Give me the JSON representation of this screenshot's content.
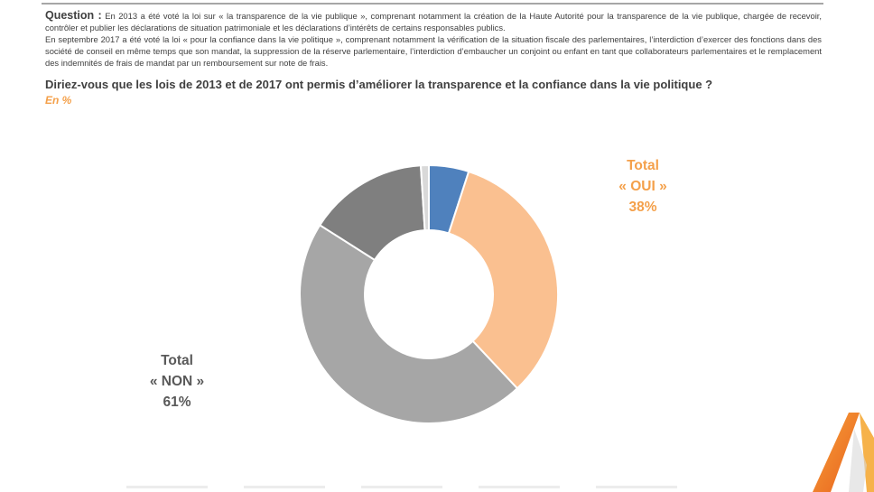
{
  "question": {
    "label": "Question :",
    "p1": "En 2013 a été voté la loi sur « la transparence de la vie publique », comprenant notamment la création de la Haute Autorité pour la transparence de la vie publique, chargée de recevoir, contrôler et publier les déclarations de situation patrimoniale et les déclarations d’intérêts de certains responsables publics.",
    "p2": "En septembre 2017 a été voté la loi « pour la confiance dans la vie politique », comprenant notamment la vérification de la situation fiscale des parlementaires, l’interdiction d’exercer des fonctions dans des société de conseil en même temps que son mandat, la suppression de la réserve parlementaire, l’interdiction d’embaucher un conjoint ou enfant en tant que collaborateurs parlementaires et le remplacement des indemnités de frais de mandat par un remboursement sur note de frais.",
    "main": "Diriez-vous que les lois de 2013 et de 2017 ont permis d’améliorer la transparence et la confiance dans la vie politique ?",
    "unit": "En %"
  },
  "totals": {
    "oui": {
      "line1": "Total",
      "line2": "« OUI »",
      "line3": "38%",
      "color": "#f4a04a"
    },
    "non": {
      "line1": "Total",
      "line2": "« NON »",
      "line3": "61%",
      "color": "#595959"
    }
  },
  "chart_data": {
    "type": "pie",
    "donut": true,
    "title": "",
    "unit": "%",
    "slices": [
      {
        "value": 5,
        "color": "#4f81bd"
      },
      {
        "value": 33,
        "color": "#fac090"
      },
      {
        "value": 46,
        "color": "#a6a6a6"
      },
      {
        "value": 15,
        "color": "#7f7f7f"
      },
      {
        "value": 1,
        "color": "#d9d9d9"
      }
    ]
  },
  "colors": {
    "text": "#404040",
    "accent": "#f4a04a"
  }
}
